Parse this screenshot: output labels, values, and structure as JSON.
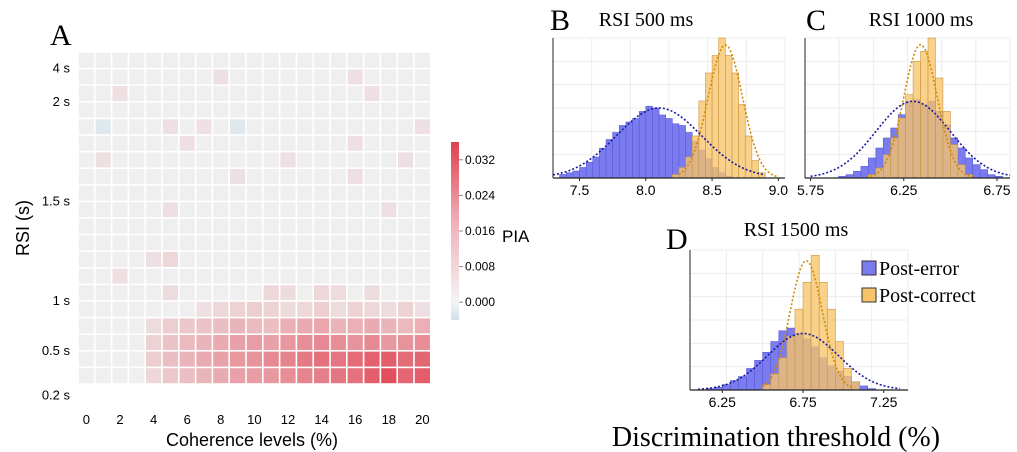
{
  "chart_data": [
    {
      "panel": "A",
      "type": "heatmap",
      "xlabel": "Coherence levels (%)",
      "ylabel": "RSI (s)",
      "x_ticks": [
        "0",
        "2",
        "4",
        "6",
        "8",
        "10",
        "12",
        "14",
        "16",
        "18",
        "20"
      ],
      "y_ticks": [
        "4 s",
        "2 s",
        "1.5 s",
        "1 s",
        "0.5 s",
        "0.2 s"
      ],
      "colorbar": {
        "label": "PIA",
        "ticks": [
          "0.032",
          "0.024",
          "0.016",
          "0.008",
          "0.000"
        ],
        "range": [
          -0.004,
          0.036
        ]
      },
      "colors": {
        "neutral": "#efefef",
        "positive": "#e0404f",
        "negative": "#cfe2ea"
      },
      "n_cols": 21,
      "n_rows": 20,
      "values": [
        [
          0,
          0,
          0,
          0,
          0,
          0,
          0,
          0,
          0,
          0,
          0,
          0,
          0,
          0,
          0,
          0,
          0,
          0,
          0,
          0,
          0
        ],
        [
          0,
          0,
          0,
          0,
          0,
          0,
          0,
          0,
          0.003,
          0,
          0,
          0,
          0,
          0,
          0,
          0,
          0.003,
          0,
          0,
          0,
          0
        ],
        [
          0,
          0,
          0.003,
          0,
          0,
          0,
          0,
          0,
          0,
          0,
          0,
          0,
          0,
          0,
          0,
          0,
          0,
          0.003,
          0,
          0,
          0
        ],
        [
          0,
          0,
          0,
          0,
          0,
          0,
          0,
          0,
          0,
          0,
          0,
          0,
          0,
          0,
          0,
          0,
          0,
          0,
          0,
          0,
          0
        ],
        [
          0,
          -0.002,
          0,
          0,
          0,
          0.003,
          0,
          0.003,
          0,
          -0.002,
          0,
          0,
          0,
          0,
          0,
          0,
          0,
          0,
          0,
          0,
          0.003
        ],
        [
          0,
          0,
          0,
          0,
          0,
          0,
          0.003,
          0,
          0,
          0,
          0,
          0,
          0,
          0,
          0,
          0,
          0.003,
          0,
          0,
          0,
          0
        ],
        [
          0,
          0.003,
          0,
          0,
          0,
          0,
          0,
          0,
          0,
          0,
          0,
          0,
          0.003,
          0,
          0,
          0,
          0,
          0,
          0,
          0.003,
          0
        ],
        [
          0,
          0,
          0,
          0,
          0,
          0,
          0,
          0,
          0,
          0.003,
          0,
          0,
          0,
          0,
          0,
          0,
          0.003,
          0,
          0,
          0,
          0
        ],
        [
          0,
          0,
          0,
          0,
          0,
          0,
          0,
          0,
          0,
          0,
          0,
          0,
          0,
          0,
          0,
          0,
          0,
          0,
          0,
          0,
          0
        ],
        [
          0,
          0,
          0,
          0,
          0,
          0.003,
          0,
          0,
          0,
          0,
          0,
          0,
          0,
          0,
          0,
          0,
          0,
          0,
          0.003,
          0,
          0
        ],
        [
          0,
          0,
          0,
          0,
          0,
          0,
          0,
          0,
          0,
          0,
          0,
          0,
          0,
          0,
          0,
          0,
          0,
          0,
          0,
          0,
          0
        ],
        [
          0,
          0,
          0,
          0,
          0,
          0,
          0,
          0,
          0,
          0,
          0,
          0,
          0,
          0,
          0,
          0,
          0,
          0,
          0,
          0,
          0
        ],
        [
          0,
          0,
          0,
          0,
          0.003,
          0.005,
          0,
          0,
          0,
          0,
          0,
          0,
          0,
          0,
          0,
          0,
          0,
          0,
          0,
          0,
          0
        ],
        [
          0,
          0,
          0.003,
          0,
          0,
          0,
          0,
          0,
          0,
          0,
          0,
          0,
          0,
          0,
          0,
          0,
          0,
          0,
          0,
          0,
          0
        ],
        [
          0,
          0,
          0,
          0,
          0,
          0.004,
          0,
          0,
          0,
          0,
          0,
          0.005,
          0.004,
          0,
          0.005,
          0.004,
          0,
          0.004,
          0,
          0,
          0
        ],
        [
          0,
          0,
          0,
          0,
          0,
          0,
          0,
          0.003,
          0.005,
          0.006,
          0.007,
          0.006,
          0.004,
          0.005,
          0.007,
          0.004,
          0.006,
          0.005,
          0.004,
          0.006,
          0.003
        ],
        [
          0,
          0,
          0,
          0,
          0.004,
          0.007,
          0.008,
          0.009,
          0.01,
          0.012,
          0.011,
          0.01,
          0.013,
          0.014,
          0.015,
          0.012,
          0.013,
          0.014,
          0.012,
          0.011,
          0.013
        ],
        [
          0,
          0,
          0,
          0,
          0.006,
          0.009,
          0.011,
          0.012,
          0.014,
          0.016,
          0.017,
          0.016,
          0.018,
          0.02,
          0.021,
          0.02,
          0.019,
          0.021,
          0.018,
          0.019,
          0.02
        ],
        [
          0,
          0,
          0,
          0,
          0.007,
          0.01,
          0.012,
          0.014,
          0.016,
          0.018,
          0.019,
          0.021,
          0.022,
          0.024,
          0.026,
          0.025,
          0.027,
          0.029,
          0.03,
          0.027,
          0.028
        ],
        [
          0,
          0,
          0,
          0,
          0.005,
          0.008,
          0.01,
          0.012,
          0.014,
          0.016,
          0.017,
          0.018,
          0.02,
          0.022,
          0.023,
          0.025,
          0.026,
          0.03,
          0.033,
          0.028,
          0.03
        ]
      ]
    },
    {
      "panel": "B",
      "type": "bar",
      "title": "RSI 500 ms",
      "x_ticks": [
        "7.5",
        "8.0",
        "8.5",
        "9.0"
      ],
      "xlim": [
        7.3,
        9.05
      ],
      "ylim": [
        0,
        4
      ],
      "bin_width": 0.05,
      "series": [
        {
          "name": "Post-error",
          "color": "#7b7bf0",
          "bins_start": 7.35,
          "values": [
            0.1,
            0.15,
            0.2,
            0.3,
            0.45,
            0.6,
            0.85,
            1.1,
            1.3,
            1.5,
            1.6,
            1.7,
            1.9,
            2.05,
            2.0,
            1.8,
            1.7,
            1.55,
            1.5,
            1.3,
            1.05,
            0.8,
            0.55,
            0.3,
            0.15,
            0.05
          ]
        },
        {
          "name": "Post-correct",
          "color": "#f7c46a",
          "bins_start": 8.2,
          "values": [
            0.1,
            0.3,
            0.6,
            1.2,
            2.2,
            3.0,
            3.5,
            4.0,
            3.5,
            3.0,
            2.1,
            1.2,
            0.5,
            0.15
          ]
        }
      ],
      "fits": [
        {
          "series": "Post-error",
          "color": "#1a1aa0",
          "mean": 8.1,
          "sd": 0.32,
          "peak": 2.0,
          "range": [
            7.3,
            8.9
          ]
        },
        {
          "series": "Post-correct",
          "color": "#d08a00",
          "mean": 8.6,
          "sd": 0.13,
          "peak": 3.8,
          "range": [
            8.25,
            9.0
          ]
        }
      ]
    },
    {
      "panel": "C",
      "type": "bar",
      "title": "RSI 1000 ms",
      "x_ticks": [
        "5.75",
        "6.25",
        "6.75"
      ],
      "xlim": [
        5.72,
        6.82
      ],
      "ylim": [
        0,
        4.2
      ],
      "bin_width": 0.04,
      "series": [
        {
          "name": "Post-error",
          "color": "#7b7bf0",
          "bins_start": 5.9,
          "values": [
            0.05,
            0.1,
            0.2,
            0.35,
            0.6,
            0.9,
            1.2,
            1.5,
            1.9,
            2.3,
            2.35,
            2.2,
            2.3,
            2.0,
            1.6,
            1.2,
            0.9,
            0.6,
            0.4,
            0.25,
            0.1,
            0.05
          ]
        },
        {
          "name": "Post-correct",
          "color": "#f7c46a",
          "bins_start": 6.06,
          "values": [
            0.1,
            0.3,
            0.7,
            1.2,
            1.8,
            2.5,
            3.5,
            3.8,
            4.2,
            3.0,
            2.0,
            1.0,
            0.4,
            0.1
          ]
        }
      ],
      "fits": [
        {
          "series": "Post-error",
          "color": "#1a1aa0",
          "mean": 6.3,
          "sd": 0.2,
          "peak": 2.3,
          "range": [
            5.75,
            6.82
          ]
        },
        {
          "series": "Post-correct",
          "color": "#d08a00",
          "mean": 6.34,
          "sd": 0.09,
          "peak": 4.0,
          "range": [
            6.05,
            6.62
          ]
        }
      ]
    },
    {
      "panel": "D",
      "type": "bar",
      "title": "RSI 1500 ms",
      "xlabel": "Discrimination threshold (%)",
      "x_ticks": [
        "6.25",
        "6.75",
        "7.25"
      ],
      "xlim": [
        6.05,
        7.4
      ],
      "ylim": [
        0,
        5.2
      ],
      "bin_width": 0.05,
      "legend": {
        "placement": "right",
        "entries": [
          "Post-error",
          "Post-correct"
        ]
      },
      "series": [
        {
          "name": "Post-error",
          "color": "#7b7bf0",
          "bins_start": 6.15,
          "values": [
            0.05,
            0.1,
            0.2,
            0.35,
            0.5,
            0.8,
            1.1,
            1.4,
            1.8,
            2.2,
            2.3,
            2.1,
            1.9,
            1.6,
            1.2,
            0.9,
            0.7,
            0.5,
            0.3,
            0.15,
            0.05
          ]
        },
        {
          "name": "Post-correct",
          "color": "#f7c46a",
          "bins_start": 6.5,
          "values": [
            0.2,
            0.6,
            1.2,
            2.0,
            3.0,
            4.0,
            5.0,
            4.0,
            3.0,
            1.8,
            0.8,
            0.3
          ]
        }
      ],
      "fits": [
        {
          "series": "Post-error",
          "color": "#1a1aa0",
          "mean": 6.75,
          "sd": 0.22,
          "peak": 2.1,
          "range": [
            6.1,
            7.35
          ]
        },
        {
          "series": "Post-correct",
          "color": "#d08a00",
          "mean": 6.77,
          "sd": 0.1,
          "peak": 4.8,
          "range": [
            6.5,
            7.05
          ]
        }
      ]
    }
  ]
}
